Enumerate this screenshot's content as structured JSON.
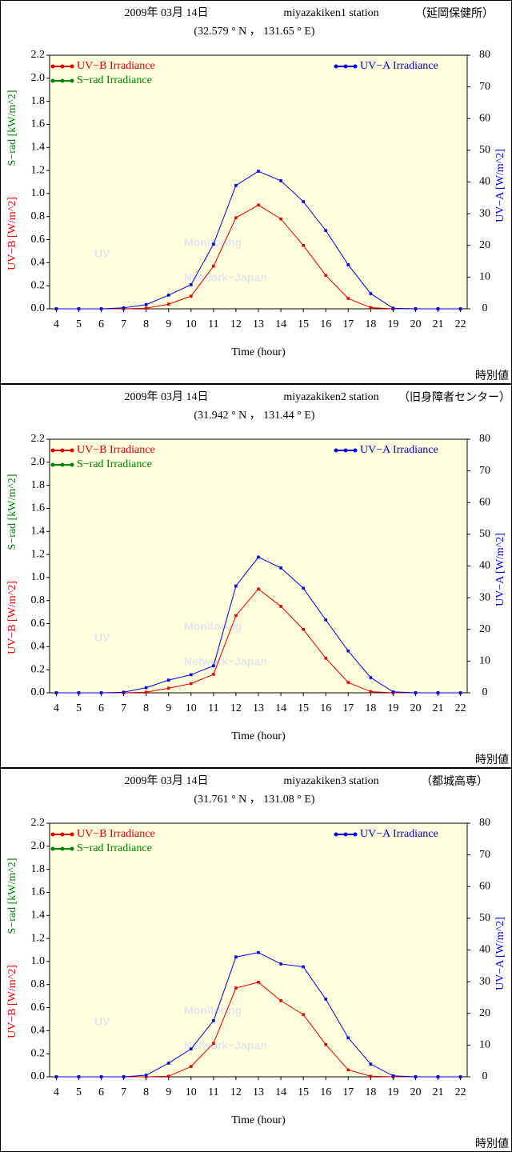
{
  "chart_data": [
    {
      "type": "line",
      "title": "2009年 03月 14日",
      "station": "miyazakiken1 station",
      "site": "（延岡保健所）",
      "subtitle": "(32.579 ° N ， 131.65 ° E)",
      "xlabel": "Time (hour)",
      "ylabels": [
        "UV−B [W/m^2]",
        "S−rad [kW/m^2]"
      ],
      "y2label": "UV−A [W/m^2]",
      "footer": "時別値",
      "watermark": [
        "UV",
        "Monitoring",
        "Network−Japan"
      ],
      "x": [
        4,
        5,
        6,
        7,
        8,
        9,
        10,
        11,
        12,
        13,
        14,
        15,
        16,
        17,
        18,
        19,
        20,
        21,
        22
      ],
      "series": [
        {
          "name": "UV−B Irradiance",
          "color": "#e00000",
          "values": [
            0,
            0,
            0,
            0,
            0.005,
            0.04,
            0.11,
            0.37,
            0.79,
            0.9,
            0.78,
            0.55,
            0.29,
            0.09,
            0.01,
            0,
            0,
            0,
            0
          ]
        },
        {
          "name": "S−rad Irradiance",
          "color": "#008000",
          "values": [
            null,
            null,
            null,
            null,
            null,
            null,
            null,
            null,
            null,
            null,
            null,
            null,
            null,
            null,
            null,
            null,
            null,
            null,
            null
          ]
        },
        {
          "name": "UV−A Irradiance",
          "color": "#0000e0",
          "axis": "y2",
          "values": [
            0,
            0,
            0,
            0.3,
            1.3,
            4.3,
            7.6,
            20.4,
            38.9,
            43.4,
            40.4,
            33.8,
            24.7,
            13.9,
            4.8,
            0.2,
            0,
            0,
            0
          ]
        }
      ],
      "xlim": [
        3.7,
        22.3
      ],
      "xticks": [
        4,
        5,
        6,
        7,
        8,
        9,
        10,
        11,
        12,
        13,
        14,
        15,
        16,
        17,
        18,
        19,
        20,
        21,
        22
      ],
      "ylim": [
        0,
        2.2
      ],
      "yticks": [
        {
          "value": 0,
          "label": "0.0"
        },
        0.2,
        0.4,
        0.6,
        0.8,
        {
          "value": 1,
          "label": "1.0"
        },
        1.2,
        1.4,
        1.6,
        1.8,
        {
          "value": 2,
          "label": "2.0"
        },
        2.2
      ],
      "y2lim": [
        0,
        80
      ],
      "y2ticks": [
        0,
        10,
        20,
        30,
        40,
        50,
        60,
        70,
        80
      ]
    },
    {
      "type": "line",
      "title": "2009年 03月 14日",
      "station": "miyazakiken2 station",
      "site": "（旧身障者センター）",
      "subtitle": "(31.942 ° N ， 131.44 ° E)",
      "xlabel": "Time (hour)",
      "ylabels": [
        "UV−B [W/m^2]",
        "S−rad [kW/m^2]"
      ],
      "y2label": "UV−A [W/m^2]",
      "footer": "時別値",
      "watermark": [
        "UV",
        "Monitoring",
        "Network−Japan"
      ],
      "x": [
        4,
        5,
        6,
        7,
        8,
        9,
        10,
        11,
        12,
        13,
        14,
        15,
        16,
        17,
        18,
        19,
        20,
        21,
        22
      ],
      "series": [
        {
          "name": "UV−B Irradiance",
          "color": "#e00000",
          "values": [
            0,
            0,
            0,
            0,
            0.005,
            0.04,
            0.08,
            0.16,
            0.67,
            0.9,
            0.75,
            0.55,
            0.3,
            0.09,
            0.01,
            0,
            0,
            0,
            0
          ]
        },
        {
          "name": "S−rad Irradiance",
          "color": "#008000",
          "values": [
            null,
            null,
            null,
            null,
            null,
            null,
            null,
            null,
            null,
            null,
            null,
            null,
            null,
            null,
            null,
            null,
            null,
            null,
            null
          ]
        },
        {
          "name": "UV−A Irradiance",
          "color": "#0000e0",
          "axis": "y2",
          "values": [
            0,
            0,
            0,
            0.2,
            1.6,
            4,
            5.7,
            8.5,
            33.7,
            42.8,
            39.4,
            33,
            23,
            13.2,
            4.8,
            0.3,
            0,
            0,
            0
          ]
        }
      ],
      "xlim": [
        3.7,
        22.3
      ],
      "xticks": [
        4,
        5,
        6,
        7,
        8,
        9,
        10,
        11,
        12,
        13,
        14,
        15,
        16,
        17,
        18,
        19,
        20,
        21,
        22
      ],
      "ylim": [
        0,
        2.2
      ],
      "yticks": [
        {
          "value": 0,
          "label": "0.0"
        },
        0.2,
        0.4,
        0.6,
        0.8,
        {
          "value": 1,
          "label": "1.0"
        },
        1.2,
        1.4,
        1.6,
        1.8,
        {
          "value": 2,
          "label": "2.0"
        },
        2.2
      ],
      "y2lim": [
        0,
        80
      ],
      "y2ticks": [
        0,
        10,
        20,
        30,
        40,
        50,
        60,
        70,
        80
      ]
    },
    {
      "type": "line",
      "title": "2009年 03月 14日",
      "station": "miyazakiken3 station",
      "site": "（都城高専）",
      "subtitle": "(31.761 ° N ， 131.08 ° E)",
      "xlabel": "Time (hour)",
      "ylabels": [
        "UV−B [W/m^2]",
        "S−rad [kW/m^2]"
      ],
      "y2label": "UV−A [W/m^2]",
      "footer": "時別値",
      "watermark": [
        "UV",
        "Monitoring",
        "Network−Japan"
      ],
      "x": [
        4,
        5,
        6,
        7,
        8,
        9,
        10,
        11,
        12,
        13,
        14,
        15,
        16,
        17,
        18,
        19,
        20,
        21,
        22
      ],
      "series": [
        {
          "name": "UV−B Irradiance",
          "color": "#e00000",
          "values": [
            0,
            0,
            0,
            0,
            0,
            0.005,
            0.09,
            0.29,
            0.77,
            0.82,
            0.66,
            0.54,
            0.28,
            0.06,
            0.005,
            0,
            0,
            0,
            0
          ]
        },
        {
          "name": "S−rad Irradiance",
          "color": "#008000",
          "values": [
            null,
            null,
            null,
            null,
            null,
            null,
            null,
            null,
            null,
            null,
            null,
            null,
            null,
            null,
            null,
            null,
            null,
            null,
            null
          ]
        },
        {
          "name": "UV−A Irradiance",
          "color": "#0000e0",
          "axis": "y2",
          "values": [
            0,
            0,
            0,
            0,
            0.5,
            4.3,
            8.8,
            17.7,
            37.8,
            39.2,
            35.6,
            34.7,
            24.5,
            12.3,
            4,
            0.3,
            0,
            0,
            0
          ]
        }
      ],
      "xlim": [
        3.7,
        22.3
      ],
      "xticks": [
        4,
        5,
        6,
        7,
        8,
        9,
        10,
        11,
        12,
        13,
        14,
        15,
        16,
        17,
        18,
        19,
        20,
        21,
        22
      ],
      "ylim": [
        0,
        2.2
      ],
      "yticks": [
        {
          "value": 0,
          "label": "0.0"
        },
        0.2,
        0.4,
        0.6,
        0.8,
        {
          "value": 1,
          "label": "1.0"
        },
        1.2,
        1.4,
        1.6,
        1.8,
        {
          "value": 2,
          "label": "2.0"
        },
        2.2
      ],
      "y2lim": [
        0,
        80
      ],
      "y2ticks": [
        0,
        10,
        20,
        30,
        40,
        50,
        60,
        70,
        80
      ]
    }
  ]
}
